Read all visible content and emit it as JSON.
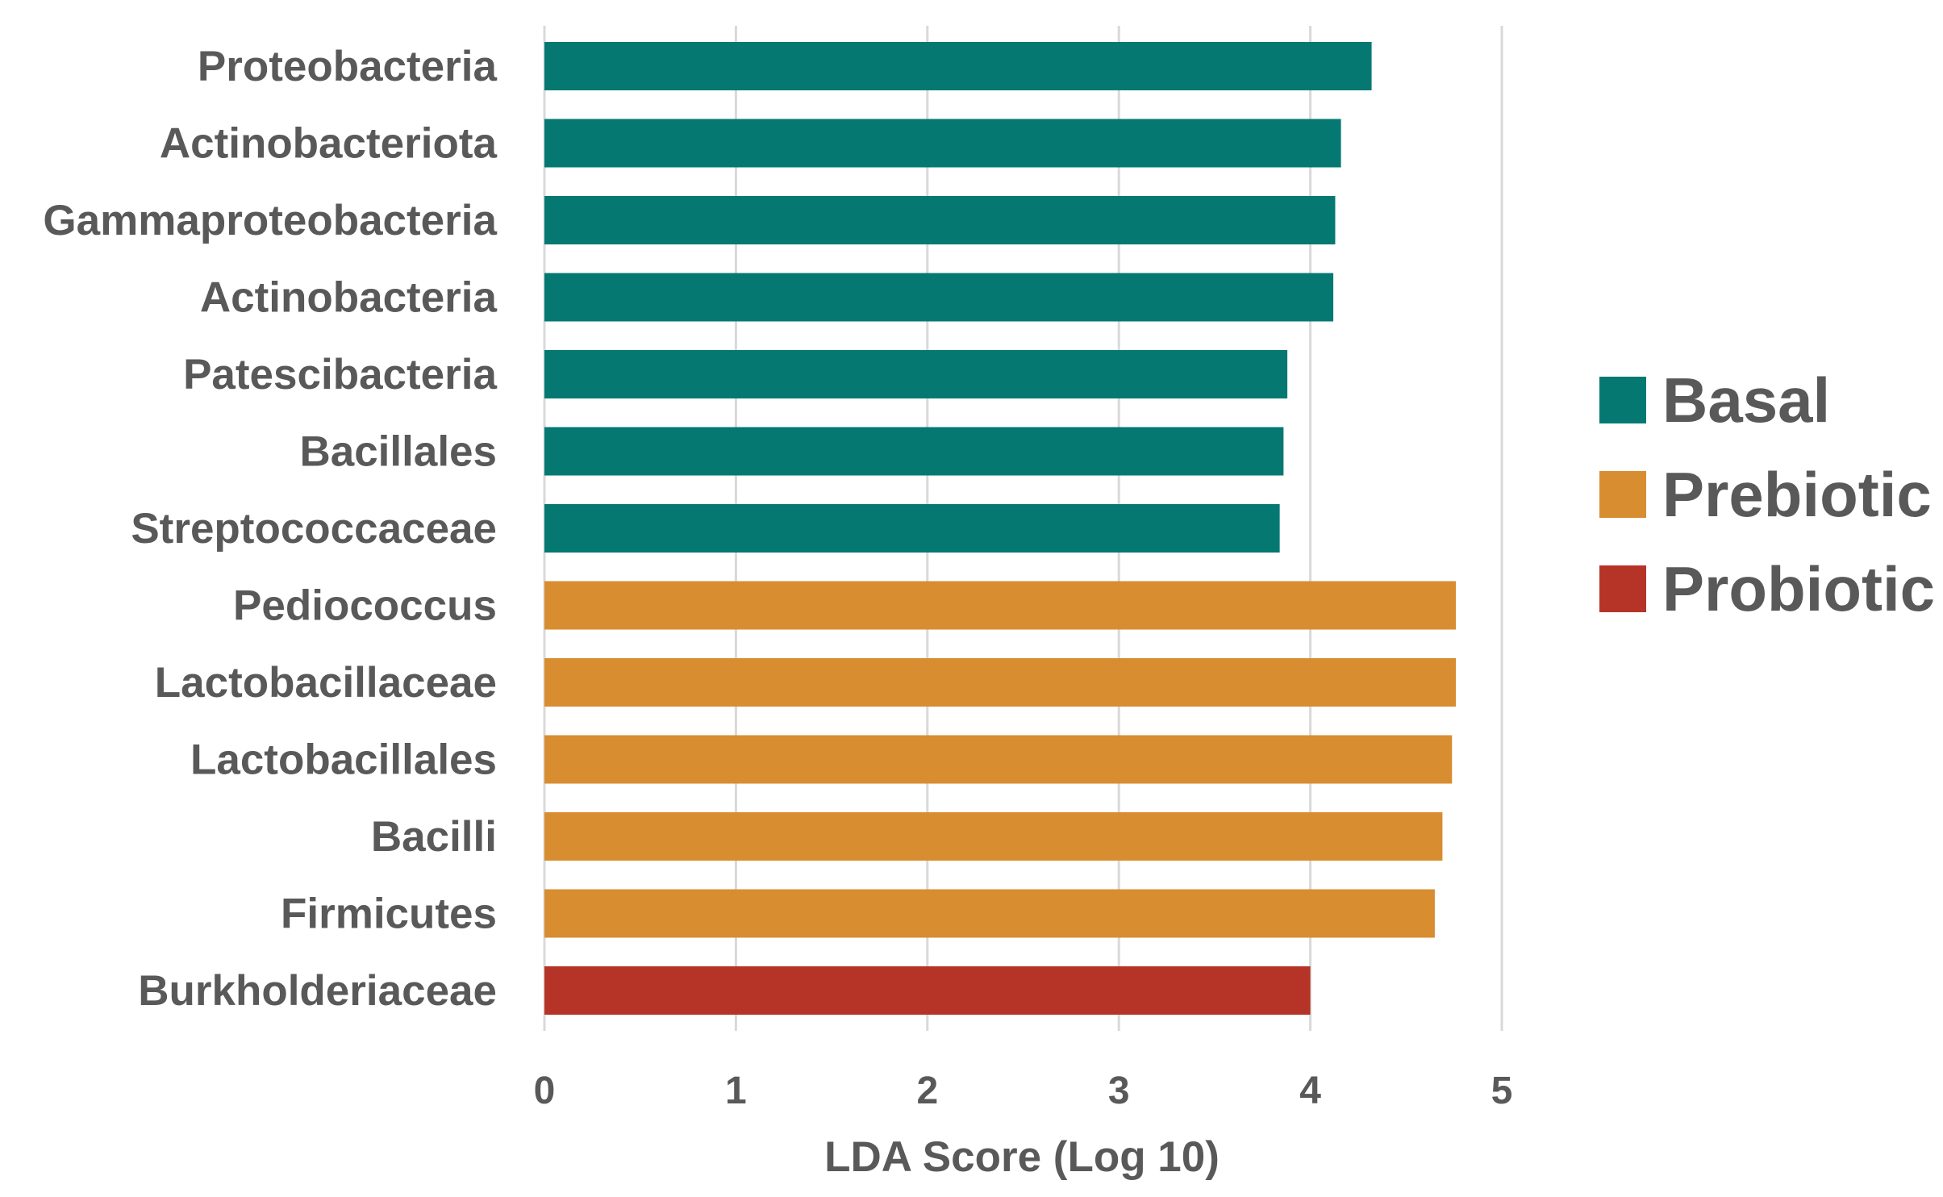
{
  "chart_data": {
    "type": "bar",
    "orientation": "horizontal",
    "title": "",
    "xlabel": "LDA Score (Log 10)",
    "ylabel": "",
    "xlim": [
      0,
      5
    ],
    "xticks": [
      "0",
      "1",
      "2",
      "3",
      "4",
      "5"
    ],
    "grid": true,
    "legend_position": "right",
    "groups": [
      {
        "name": "Basal",
        "color": "#057872"
      },
      {
        "name": "Prebiotic",
        "color": "#D88D31"
      },
      {
        "name": "Probiotic",
        "color": "#B53427"
      }
    ],
    "bars": [
      {
        "label": "Proteobacteria",
        "value": 4.32,
        "group": "Basal"
      },
      {
        "label": "Actinobacteriota",
        "value": 4.16,
        "group": "Basal"
      },
      {
        "label": "Gammaproteobacteria",
        "value": 4.13,
        "group": "Basal"
      },
      {
        "label": "Actinobacteria",
        "value": 4.12,
        "group": "Basal"
      },
      {
        "label": "Patescibacteria",
        "value": 3.88,
        "group": "Basal"
      },
      {
        "label": "Bacillales",
        "value": 3.86,
        "group": "Basal"
      },
      {
        "label": "Streptococcaceae",
        "value": 3.84,
        "group": "Basal"
      },
      {
        "label": "Pediococcus",
        "value": 4.76,
        "group": "Prebiotic"
      },
      {
        "label": "Lactobacillaceae",
        "value": 4.76,
        "group": "Prebiotic"
      },
      {
        "label": "Lactobacillales",
        "value": 4.74,
        "group": "Prebiotic"
      },
      {
        "label": "Bacilli",
        "value": 4.69,
        "group": "Prebiotic"
      },
      {
        "label": "Firmicutes",
        "value": 4.65,
        "group": "Prebiotic"
      },
      {
        "label": "Burkholderiaceae",
        "value": 4.0,
        "group": "Probiotic"
      }
    ]
  }
}
